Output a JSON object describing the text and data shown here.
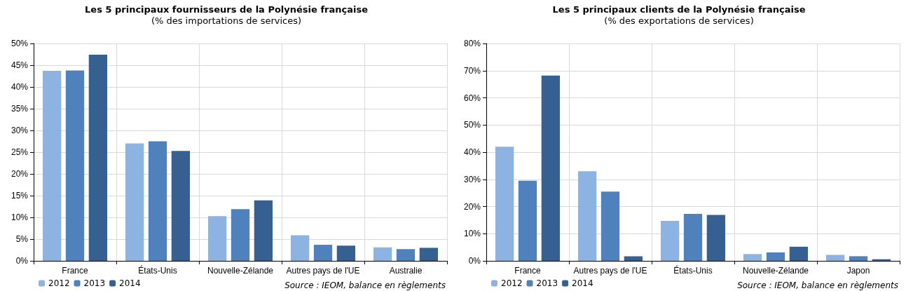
{
  "chart_data": [
    {
      "type": "bar",
      "title": "Les 5 principaux fournisseurs de la Polynésie française",
      "subtitle": "(% des importations de services)",
      "categories": [
        "France",
        "États-Unis",
        "Nouvelle-Zélande",
        "Autres pays de l'UE",
        "Australie"
      ],
      "series": [
        {
          "name": "2012",
          "color": "#8db3e2",
          "values": [
            43.7,
            27.0,
            10.3,
            5.9,
            3.1
          ]
        },
        {
          "name": "2013",
          "color": "#4f81bd",
          "values": [
            43.8,
            27.5,
            11.9,
            3.7,
            2.7
          ]
        },
        {
          "name": "2014",
          "color": "#366092",
          "values": [
            47.4,
            25.3,
            13.9,
            3.5,
            3.0
          ]
        }
      ],
      "ylim": [
        0,
        50
      ],
      "yticks": [
        {
          "value": 0,
          "label": "0%"
        },
        {
          "value": 5,
          "label": "5%"
        },
        {
          "value": 10,
          "label": "10%"
        },
        {
          "value": 15,
          "label": "15%"
        },
        {
          "value": 20,
          "label": "20%"
        },
        {
          "value": 25,
          "label": "25%"
        },
        {
          "value": 30,
          "label": "30%"
        },
        {
          "value": 35,
          "label": "35%"
        },
        {
          "value": 40,
          "label": "40%"
        },
        {
          "value": 45,
          "label": "45%"
        },
        {
          "value": 50,
          "label": "50%"
        }
      ],
      "grid": true,
      "legend": "bottom left",
      "annotations": [
        "Source : IEOM, balance en règlements"
      ]
    },
    {
      "type": "bar",
      "title": "Les 5 principaux clients de la Polynésie française",
      "subtitle": "(% des exportations de services)",
      "categories": [
        "France",
        "Autres pays de l'UE",
        "États-Unis",
        "Nouvelle-Zélande",
        "Japon"
      ],
      "series": [
        {
          "name": "2012",
          "color": "#8db3e2",
          "values": [
            42.0,
            33.0,
            14.7,
            2.5,
            2.2
          ]
        },
        {
          "name": "2013",
          "color": "#4f81bd",
          "values": [
            29.5,
            25.5,
            17.3,
            3.1,
            1.7
          ]
        },
        {
          "name": "2014",
          "color": "#366092",
          "values": [
            68.2,
            1.7,
            16.9,
            5.2,
            0.6
          ]
        }
      ],
      "ylim": [
        0,
        80
      ],
      "yticks": [
        {
          "value": 0,
          "label": "0%"
        },
        {
          "value": 10,
          "label": "10%"
        },
        {
          "value": 20,
          "label": "20%"
        },
        {
          "value": 30,
          "label": "30%"
        },
        {
          "value": 40,
          "label": "40%"
        },
        {
          "value": 50,
          "label": "50%"
        },
        {
          "value": 60,
          "label": "60%"
        },
        {
          "value": 70,
          "label": "70%"
        },
        {
          "value": 80,
          "label": "80%"
        }
      ],
      "grid": true,
      "legend": "bottom left",
      "annotations": [
        "Source : IEOM, balance en règlements"
      ]
    }
  ]
}
